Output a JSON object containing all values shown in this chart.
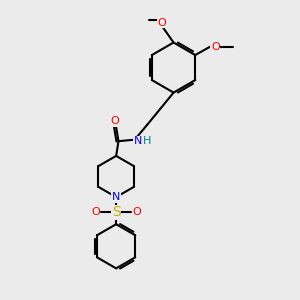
{
  "bg_color": "#ebebeb",
  "bond_color": "#000000",
  "bond_width": 1.5,
  "atom_colors": {
    "O": "#ff0000",
    "N": "#0000ff",
    "S": "#ccaa00",
    "C": "#000000",
    "H": "#008080"
  },
  "font_size": 8.0
}
